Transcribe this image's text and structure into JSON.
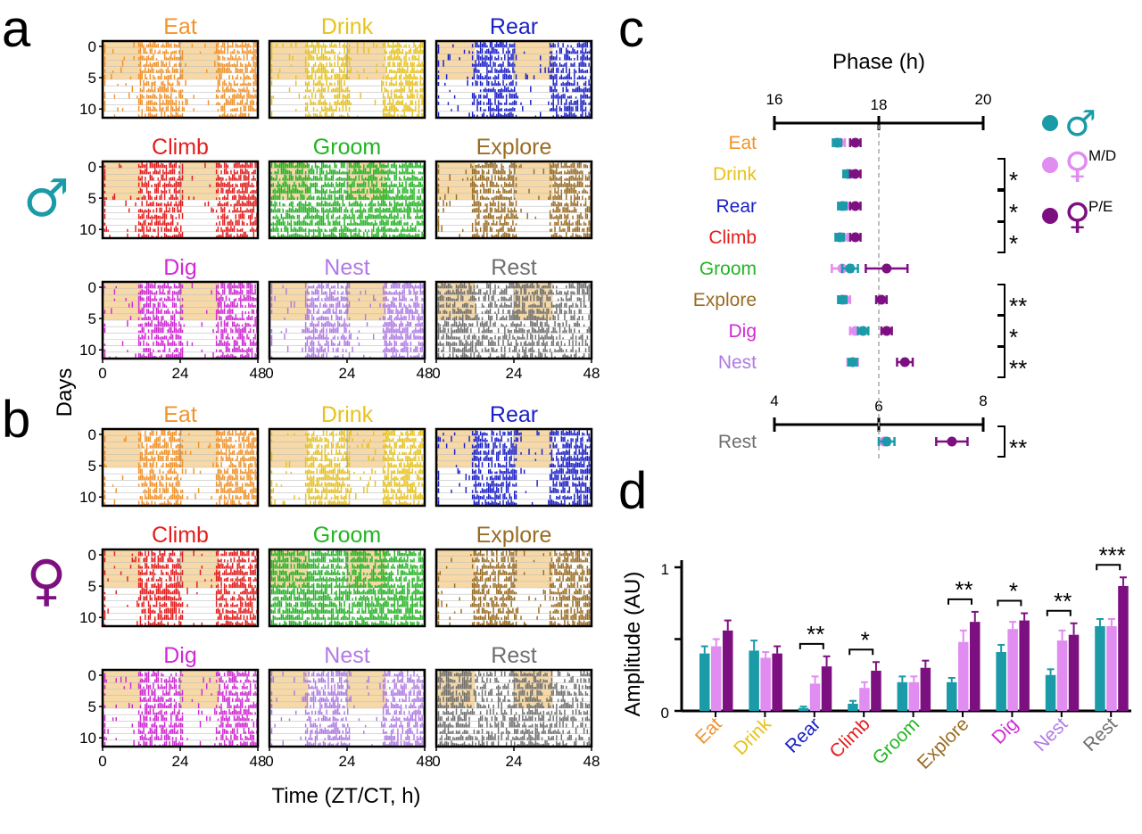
{
  "panel_labels": {
    "a": "a",
    "b": "b",
    "c": "c",
    "d": "d"
  },
  "colors": {
    "Eat": "#f2932a",
    "Drink": "#e8c21a",
    "Rear": "#1a1fc8",
    "Climb": "#e41d1d",
    "Groom": "#22b522",
    "Explore": "#9a6c22",
    "Dig": "#cf2ad3",
    "Nest": "#b07ae6",
    "Rest": "#6f6f6f",
    "light_phase": "#f6d9a6",
    "male": "#1b9aa8",
    "female_md": "#e08cf0",
    "female_pe": "#7d1080"
  },
  "sex_icons": {
    "male": "♂",
    "female": "♀"
  },
  "actogram": {
    "behaviors": [
      "Eat",
      "Drink",
      "Rear",
      "Climb",
      "Groom",
      "Explore",
      "Dig",
      "Nest",
      "Rest"
    ],
    "y_label": "Days",
    "x_label": "Time (ZT/CT, h)",
    "x_ticks": [
      "0",
      "24",
      "48"
    ],
    "y_ticks": [
      "0",
      "5",
      "10"
    ]
  },
  "chart_data": [
    {
      "type": "scatter",
      "panel": "c",
      "title": "Phase (h)",
      "axis_top": {
        "ticks": [
          "16",
          "18",
          "20"
        ],
        "range": [
          16,
          20
        ]
      },
      "axis_rest": {
        "ticks": [
          "4",
          "6",
          "8"
        ],
        "range": [
          4,
          8
        ]
      },
      "categories": [
        "Eat",
        "Drink",
        "Rear",
        "Climb",
        "Groom",
        "Explore",
        "Dig",
        "Nest",
        "Rest"
      ],
      "series": [
        {
          "key": "female_md",
          "values": [
            17.25,
            17.45,
            17.35,
            17.3,
            17.3,
            17.35,
            17.55,
            17.5,
            6.1
          ],
          "errors": [
            0.1,
            0.1,
            0.1,
            0.1,
            0.2,
            0.1,
            0.1,
            0.1,
            0.1
          ]
        },
        {
          "key": "male",
          "values": [
            17.2,
            17.4,
            17.3,
            17.25,
            17.45,
            17.3,
            17.7,
            17.5,
            6.15
          ],
          "errors": [
            0.08,
            0.08,
            0.08,
            0.08,
            0.15,
            0.08,
            0.1,
            0.08,
            0.15
          ]
        },
        {
          "key": "female_pe",
          "values": [
            17.55,
            17.55,
            17.55,
            17.55,
            18.15,
            18.05,
            18.15,
            18.5,
            7.4
          ],
          "errors": [
            0.1,
            0.1,
            0.1,
            0.1,
            0.4,
            0.1,
            0.1,
            0.15,
            0.3
          ]
        }
      ],
      "significance": [
        "",
        "*",
        "*",
        "*",
        "",
        "**",
        "*",
        "**",
        "**"
      ],
      "legend": {
        "male_symbol": "♂",
        "female_symbol": "♀",
        "female_md_label": "M/D",
        "female_pe_label": "P/E"
      }
    },
    {
      "type": "bar",
      "panel": "d",
      "ylabel": "Amplitude (AU)",
      "ylim": [
        0,
        1
      ],
      "y_ticks": [
        "0",
        "1"
      ],
      "categories": [
        "Eat",
        "Drink",
        "Rear",
        "Climb",
        "Groom",
        "Explore",
        "Dig",
        "Nest",
        "Rest"
      ],
      "series": [
        {
          "key": "male",
          "values": [
            0.4,
            0.42,
            0.02,
            0.05,
            0.2,
            0.2,
            0.41,
            0.25,
            0.59
          ],
          "errors": [
            0.05,
            0.07,
            0.01,
            0.02,
            0.04,
            0.03,
            0.05,
            0.04,
            0.05
          ]
        },
        {
          "key": "female_md",
          "values": [
            0.45,
            0.37,
            0.19,
            0.16,
            0.2,
            0.48,
            0.57,
            0.49,
            0.59
          ],
          "errors": [
            0.05,
            0.04,
            0.05,
            0.04,
            0.04,
            0.08,
            0.05,
            0.07,
            0.05
          ]
        },
        {
          "key": "female_pe",
          "values": [
            0.56,
            0.4,
            0.31,
            0.28,
            0.3,
            0.62,
            0.63,
            0.53,
            0.87
          ],
          "errors": [
            0.07,
            0.05,
            0.07,
            0.06,
            0.05,
            0.07,
            0.05,
            0.08,
            0.06
          ]
        }
      ],
      "significance": [
        "",
        "",
        "**",
        "*",
        "",
        "**",
        "*",
        "**",
        "***"
      ]
    }
  ]
}
